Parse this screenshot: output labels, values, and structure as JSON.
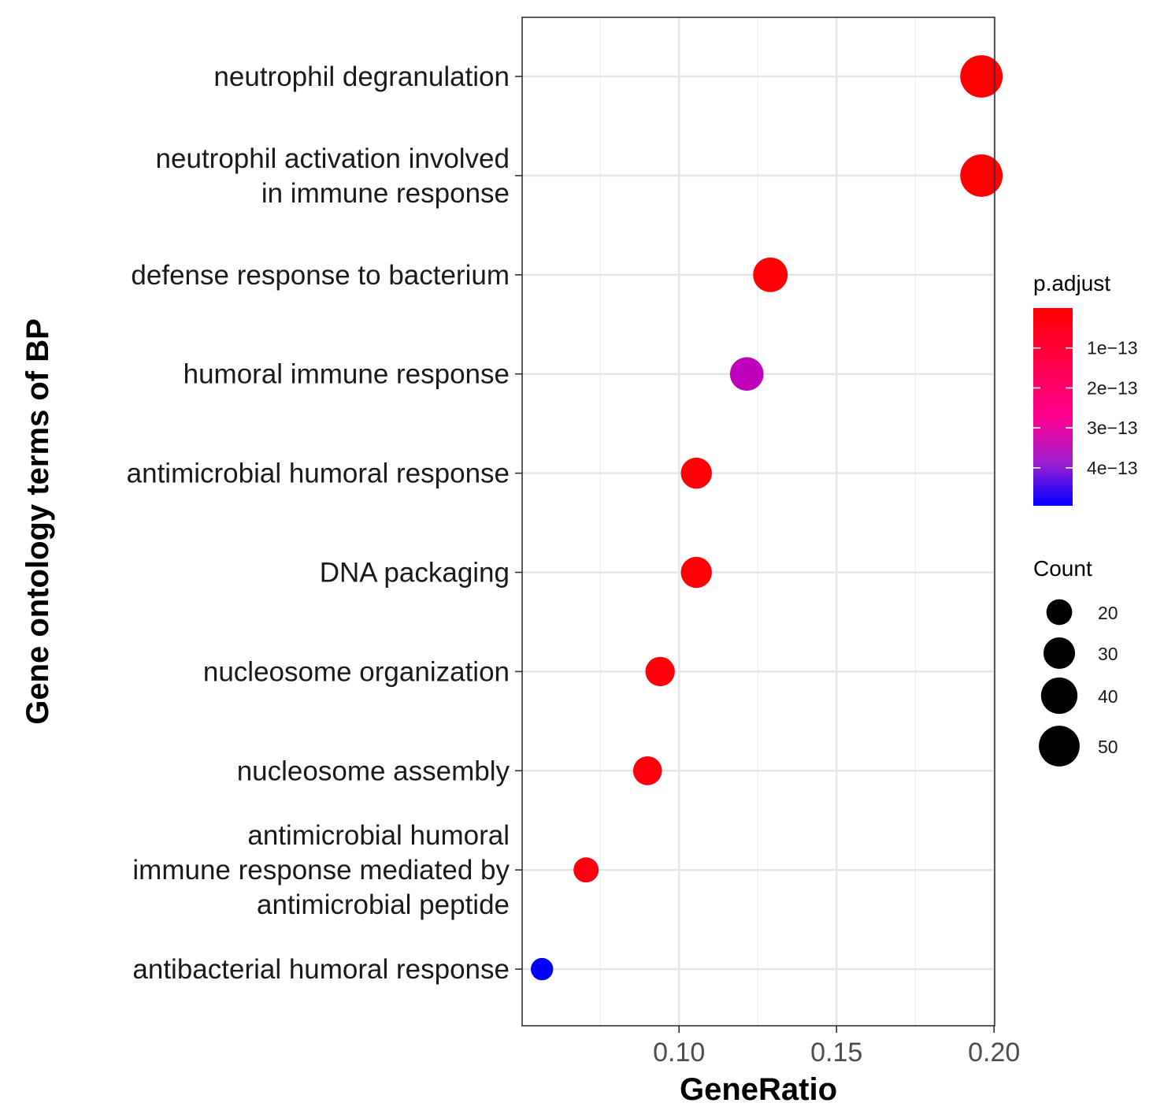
{
  "chart_data": {
    "type": "scatter",
    "title": "",
    "xlabel": "GeneRatio",
    "ylabel": "Gene ontology terms of BP",
    "xlim": [
      0.0502,
      0.2002
    ],
    "x_ticks": [
      0.1,
      0.15,
      0.2
    ],
    "x_tick_labels": [
      "0.10",
      "0.15",
      "0.20"
    ],
    "grid": true,
    "categories": [
      [
        "neutrophil degranulation"
      ],
      [
        "neutrophil activation involved",
        "in immune response"
      ],
      [
        "defense response to bacterium"
      ],
      [
        "humoral immune response"
      ],
      [
        "antimicrobial humoral response"
      ],
      [
        "DNA packaging"
      ],
      [
        "nucleosome organization"
      ],
      [
        "nucleosome assembly"
      ],
      [
        "antimicrobial humoral",
        "immune response mediated by",
        "antimicrobial peptide"
      ],
      [
        "antibacterial humoral response"
      ]
    ],
    "points": [
      {
        "x": 0.196,
        "count": 54,
        "p_adjust": 5e-15
      },
      {
        "x": 0.196,
        "count": 54,
        "p_adjust": 5e-15
      },
      {
        "x": 0.129,
        "count": 36,
        "p_adjust": 1e-14
      },
      {
        "x": 0.1215,
        "count": 34,
        "p_adjust": 3.5e-13
      },
      {
        "x": 0.1055,
        "count": 29,
        "p_adjust": 1e-14
      },
      {
        "x": 0.1055,
        "count": 29,
        "p_adjust": 1e-14
      },
      {
        "x": 0.094,
        "count": 26,
        "p_adjust": 2e-14
      },
      {
        "x": 0.09,
        "count": 25,
        "p_adjust": 2e-14
      },
      {
        "x": 0.0705,
        "count": 19,
        "p_adjust": 3e-14
      },
      {
        "x": 0.0565,
        "count": 15,
        "p_adjust": 5e-13
      }
    ],
    "color_legend": {
      "title": "p.adjust",
      "low_color": "#ff0000",
      "mid_color": "#c000b0",
      "high_color": "#0000ff",
      "range": [
        0,
        4.95e-13
      ],
      "ticks": [
        1e-13,
        2e-13,
        3e-13,
        4e-13
      ],
      "tick_labels": [
        "1e−13",
        "2e−13",
        "3e−13",
        "4e−13"
      ]
    },
    "size_legend": {
      "title": "Count",
      "values": [
        20,
        30,
        40,
        50
      ],
      "labels": [
        "20",
        "30",
        "40",
        "50"
      ],
      "color": "#000000"
    }
  }
}
